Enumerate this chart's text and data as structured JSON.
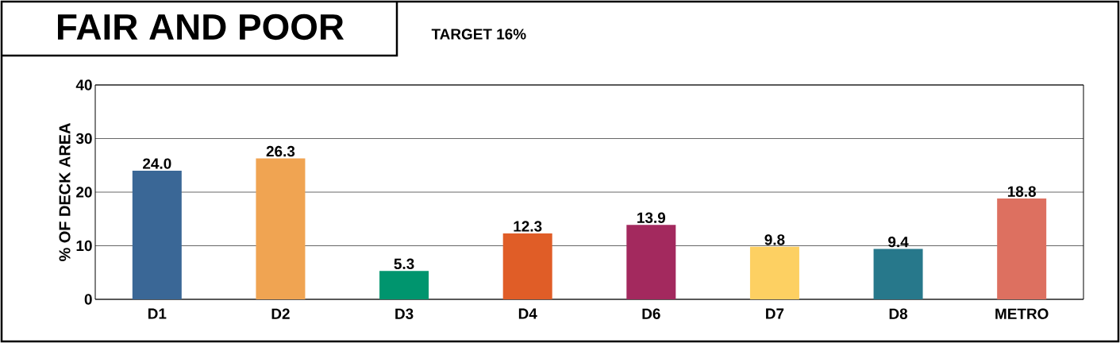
{
  "chart_data": {
    "type": "bar",
    "title": "FAIR AND POOR",
    "subtitle": "TARGET 16%",
    "ylabel": "% OF DECK AREA",
    "categories": [
      "D1",
      "D2",
      "D3",
      "D4",
      "D6",
      "D7",
      "D8",
      "METRO"
    ],
    "values": [
      24.0,
      26.3,
      5.3,
      12.3,
      13.9,
      9.8,
      9.4,
      18.8
    ],
    "colors": [
      "#3a6796",
      "#f0a452",
      "#00956e",
      "#e05d27",
      "#a3295e",
      "#fdd062",
      "#27788b",
      "#dd7060"
    ],
    "value_labels": [
      "24.0",
      "26.3",
      "5.3",
      "12.3",
      "13.9",
      "9.8",
      "9.4",
      "18.8"
    ],
    "ylim": [
      0,
      40
    ],
    "yticks": [
      0,
      10,
      20,
      30,
      40
    ],
    "grid": "y"
  }
}
